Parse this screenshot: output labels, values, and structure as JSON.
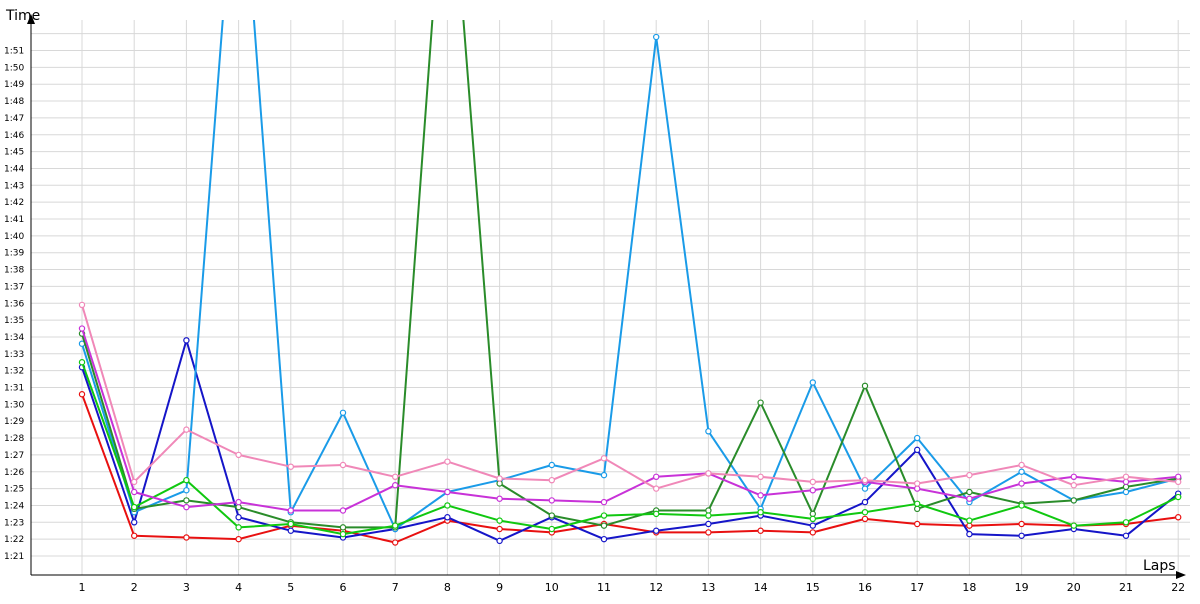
{
  "chart_data": {
    "type": "line",
    "ylabel": "Time",
    "xlabel": "Laps",
    "grid": true,
    "x": [
      1,
      2,
      3,
      4,
      5,
      6,
      7,
      8,
      9,
      10,
      11,
      12,
      13,
      14,
      15,
      16,
      17,
      18,
      19,
      20,
      21,
      22
    ],
    "ylim": [
      80,
      113
    ],
    "y_ticks": [
      "1:21",
      "1:22",
      "1:23",
      "1:24",
      "1:25",
      "1:26",
      "1:27",
      "1:28",
      "1:29",
      "1:30",
      "1:31",
      "1:32",
      "1:33",
      "1:34",
      "1:35",
      "1:36",
      "1:37",
      "1:38",
      "1:39",
      "1:40",
      "1:41",
      "1:42",
      "1:43",
      "1:44",
      "1:45",
      "1:46",
      "1:47",
      "1:48",
      "1:49",
      "1:50",
      "1:51"
    ],
    "series": [
      {
        "color": "#e81010",
        "values": [
          90.6,
          82.2,
          82.1,
          82.0,
          82.8,
          82.5,
          81.8,
          83.1,
          82.6,
          82.4,
          82.9,
          82.4,
          82.4,
          82.5,
          82.4,
          83.2,
          82.9,
          82.8,
          82.9,
          82.8,
          82.9,
          83.3
        ]
      },
      {
        "color": "#1515c8",
        "values": [
          92.2,
          83.0,
          93.8,
          83.3,
          82.5,
          82.1,
          82.6,
          83.3,
          81.9,
          83.3,
          82.0,
          82.5,
          82.9,
          83.4,
          82.8,
          84.2,
          87.3,
          82.3,
          82.2,
          82.6,
          82.2,
          84.7
        ]
      },
      {
        "color": "#1a9be8",
        "values": [
          93.6,
          83.6,
          84.9,
          125.0,
          83.6,
          89.5,
          82.6,
          84.8,
          85.5,
          86.4,
          85.8,
          111.8,
          88.4,
          83.8,
          91.3,
          85.0,
          88.0,
          84.2,
          86.0,
          84.3,
          84.8,
          85.6
        ]
      },
      {
        "color": "#2a8c2a",
        "values": [
          94.2,
          83.8,
          84.3,
          83.9,
          83.0,
          82.7,
          82.7,
          125.0,
          85.3,
          83.4,
          82.8,
          83.7,
          83.7,
          90.1,
          83.5,
          91.1,
          83.8,
          84.8,
          84.1,
          84.3,
          85.1,
          85.6
        ]
      },
      {
        "color": "#10c810",
        "values": [
          92.5,
          83.9,
          85.5,
          82.7,
          82.9,
          82.3,
          82.8,
          84.0,
          83.1,
          82.6,
          83.4,
          83.5,
          83.4,
          83.6,
          83.2,
          83.6,
          84.1,
          83.1,
          84.0,
          82.8,
          83.0,
          84.5
        ]
      },
      {
        "color": "#c832d8",
        "values": [
          94.5,
          84.8,
          83.9,
          84.2,
          83.7,
          83.7,
          85.2,
          84.8,
          84.4,
          84.3,
          84.2,
          85.7,
          85.9,
          84.6,
          84.9,
          85.4,
          85.0,
          84.4,
          85.3,
          85.7,
          85.4,
          85.7
        ]
      },
      {
        "color": "#f088b8",
        "values": [
          95.9,
          85.4,
          88.5,
          87.0,
          86.3,
          86.4,
          85.7,
          86.6,
          85.6,
          85.5,
          86.8,
          85.0,
          85.9,
          85.7,
          85.4,
          85.5,
          85.3,
          85.8,
          86.4,
          85.2,
          85.7,
          85.4
        ]
      }
    ]
  }
}
